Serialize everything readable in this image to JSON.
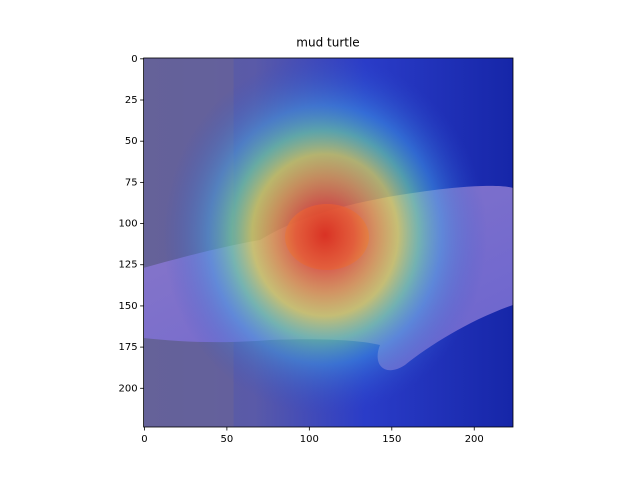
{
  "chart_data": {
    "type": "image",
    "title": "mud turtle",
    "xlim": [
      -0.5,
      223.5
    ],
    "xticks": [
      0,
      50,
      100,
      150,
      200
    ],
    "ylim": [
      223.5,
      -0.5
    ],
    "yticks": [
      0,
      25,
      50,
      75,
      100,
      125,
      150,
      175,
      200
    ]
  }
}
